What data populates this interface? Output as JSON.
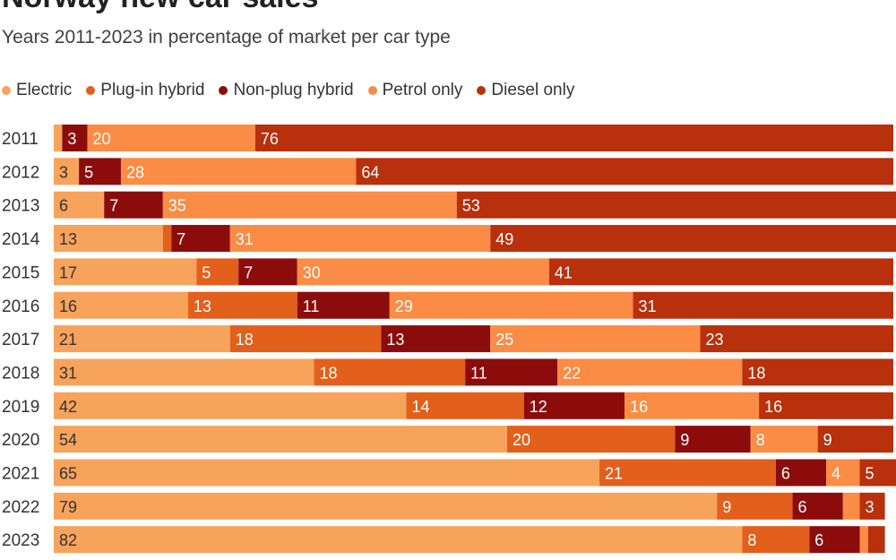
{
  "chart_data": {
    "type": "bar",
    "orientation": "horizontal",
    "stacked": true,
    "title": "Norway new car sales",
    "subtitle": "Years 2011-2023 in percentage of market per car type",
    "categories": [
      "2011",
      "2012",
      "2013",
      "2014",
      "2015",
      "2016",
      "2017",
      "2018",
      "2019",
      "2020",
      "2021",
      "2022",
      "2023"
    ],
    "xlim": [
      0,
      100
    ],
    "legend_position": "top-left",
    "series": [
      {
        "name": "Electric",
        "color": "#f7a35c",
        "values": [
          1,
          3,
          6,
          13,
          17,
          16,
          21,
          31,
          42,
          54,
          65,
          79,
          82
        ]
      },
      {
        "name": "Plug-in hybrid",
        "color": "#e35f1c",
        "values": [
          0,
          0,
          0,
          1,
          5,
          13,
          18,
          18,
          14,
          20,
          21,
          9,
          8
        ]
      },
      {
        "name": "Non-plug hybrid",
        "color": "#8c0c0c",
        "values": [
          3,
          5,
          7,
          7,
          7,
          11,
          13,
          11,
          12,
          9,
          6,
          6,
          6
        ]
      },
      {
        "name": "Petrol only",
        "color": "#fb8c45",
        "values": [
          20,
          28,
          35,
          31,
          30,
          29,
          25,
          22,
          16,
          8,
          4,
          2,
          1
        ]
      },
      {
        "name": "Diesel only",
        "color": "#b8300c",
        "values": [
          76,
          64,
          53,
          49,
          41,
          31,
          23,
          18,
          16,
          9,
          5,
          3,
          2
        ]
      }
    ],
    "labels": [
      [
        "",
        "",
        "3",
        "20",
        "76"
      ],
      [
        "3",
        "",
        "5",
        "28",
        "64"
      ],
      [
        "6",
        "",
        "7",
        "35",
        "53"
      ],
      [
        "13",
        "",
        "7",
        "31",
        "49"
      ],
      [
        "17",
        "5",
        "7",
        "30",
        "41"
      ],
      [
        "16",
        "13",
        "11",
        "29",
        "31"
      ],
      [
        "21",
        "18",
        "13",
        "25",
        "23"
      ],
      [
        "31",
        "18",
        "11",
        "22",
        "18"
      ],
      [
        "42",
        "14",
        "12",
        "16",
        "16"
      ],
      [
        "54",
        "20",
        "9",
        "8",
        "9"
      ],
      [
        "65",
        "21",
        "6",
        "4",
        "5"
      ],
      [
        "79",
        "9",
        "6",
        "",
        "3"
      ],
      [
        "82",
        "8",
        "6",
        "",
        ""
      ]
    ]
  }
}
